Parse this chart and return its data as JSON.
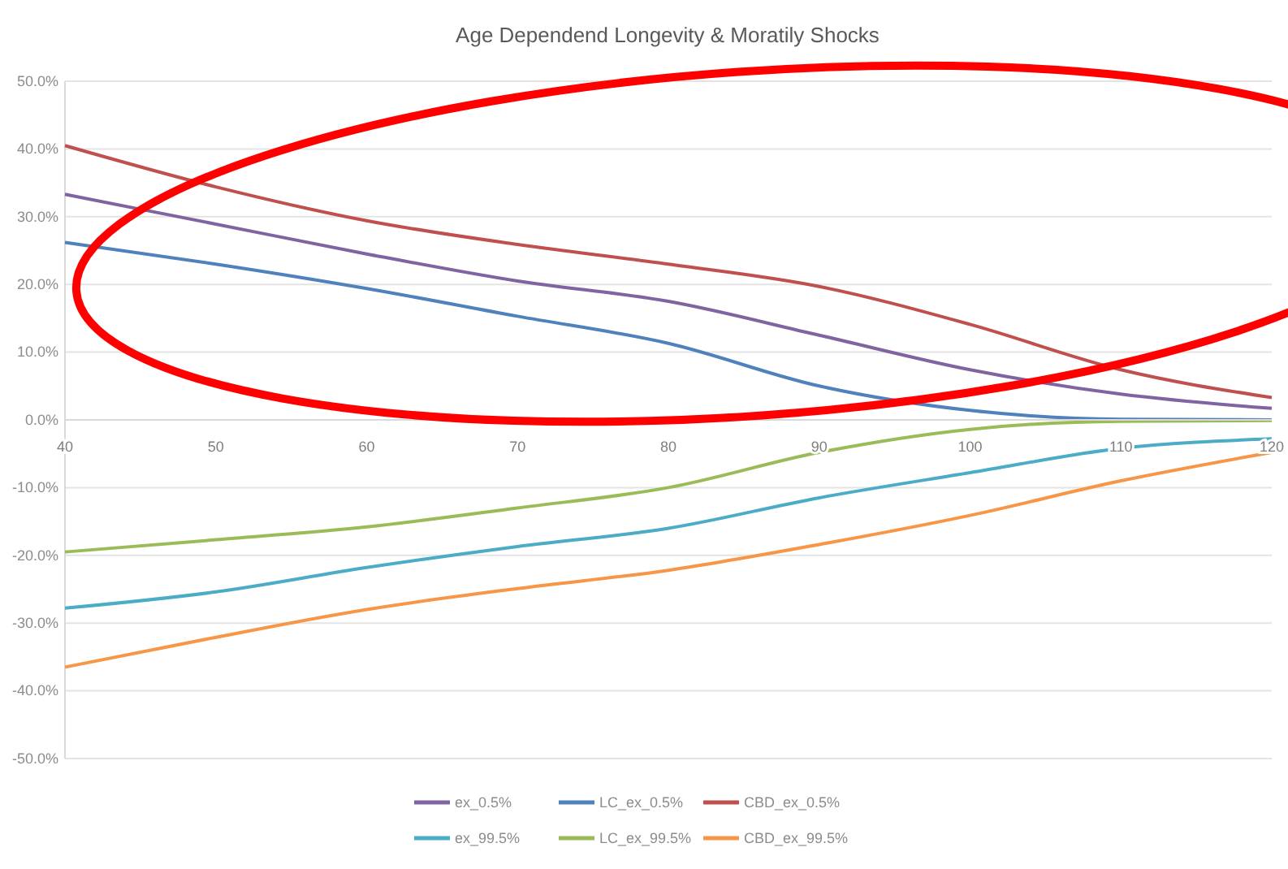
{
  "chart_data": {
    "type": "line",
    "title": "Age Dependend Longevity & Moratily Shocks",
    "x": [
      40,
      50,
      60,
      70,
      80,
      90,
      100,
      110,
      120
    ],
    "xlim": [
      40,
      120
    ],
    "xticks": [
      40,
      50,
      60,
      70,
      80,
      90,
      100,
      110,
      120
    ],
    "ylim": [
      -50,
      50
    ],
    "yticks": [
      {
        "value": -50,
        "label": "-50.0%"
      },
      {
        "value": -40,
        "label": "-40.0%"
      },
      {
        "value": -30,
        "label": "-30.0%"
      },
      {
        "value": -20,
        "label": "-20.0%"
      },
      {
        "value": -10,
        "label": "-10.0%"
      },
      {
        "value": 0,
        "label": "0.0%"
      },
      {
        "value": 10,
        "label": "10.0%"
      },
      {
        "value": 20,
        "label": "20.0%"
      },
      {
        "value": 30,
        "label": "30.0%"
      },
      {
        "value": 40,
        "label": "40.0%"
      },
      {
        "value": 50,
        "label": "50.0%"
      }
    ],
    "grid": "y",
    "legend": "bottom",
    "marker": "none",
    "line_style": "solid",
    "series": [
      {
        "name": "ex_0.5%",
        "color": "#8064a2",
        "values": [
          33.3,
          28.9,
          24.5,
          20.5,
          17.5,
          12.5,
          7.4,
          3.8,
          1.7
        ]
      },
      {
        "name": "LC_ex_0.5%",
        "color": "#4f81bd",
        "values": [
          26.2,
          23.0,
          19.4,
          15.3,
          11.3,
          5.0,
          1.4,
          0.1,
          0.0
        ]
      },
      {
        "name": "CBD_ex_0.5%",
        "color": "#c0504d",
        "values": [
          40.5,
          34.4,
          29.4,
          25.9,
          23.0,
          19.7,
          14.1,
          7.4,
          3.3
        ]
      },
      {
        "name": "ex_99.5%",
        "color": "#4bacc6",
        "values": [
          -27.8,
          -25.4,
          -21.8,
          -18.7,
          -16.0,
          -11.5,
          -7.8,
          -4.2,
          -2.8
        ]
      },
      {
        "name": "LC_ex_99.5%",
        "color": "#9bbb59",
        "values": [
          -19.5,
          -17.7,
          -15.8,
          -13.0,
          -10.0,
          -4.8,
          -1.4,
          -0.2,
          -0.1
        ]
      },
      {
        "name": "CBD_ex_99.5%",
        "color": "#f79646",
        "values": [
          -36.5,
          -32.1,
          -28.0,
          -24.9,
          -22.2,
          -18.4,
          -14.1,
          -9.0,
          -4.8
        ]
      }
    ]
  }
}
